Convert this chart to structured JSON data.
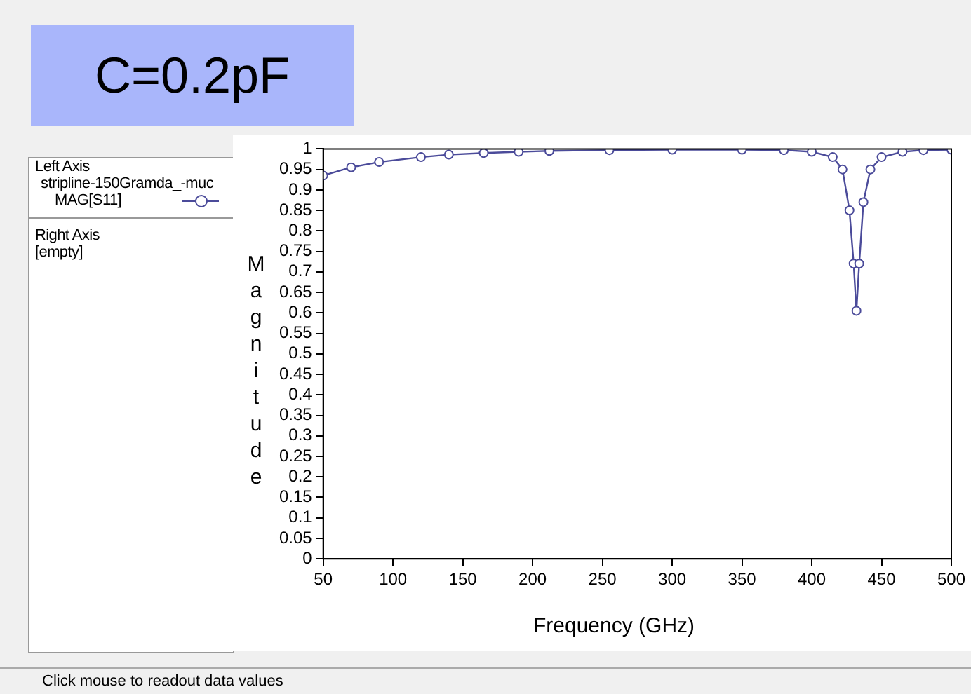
{
  "chart_data": {
    "type": "line",
    "xlabel": "Frequency (GHz)",
    "ylabel": "Magnitude",
    "annotations": [
      "C=0.2pF",
      "Left Axis",
      "stripline-150Gramda_-muc",
      "Right Axis",
      "[empty]",
      "Click mouse to readout data values"
    ],
    "series": [
      {
        "name": "MAG[S11]",
        "color": "#4b4b9a",
        "x": [
          50,
          70,
          90,
          120,
          140,
          165,
          190,
          212,
          255,
          300,
          350,
          380,
          400,
          415,
          422,
          427,
          430,
          432,
          434,
          437,
          442,
          450,
          465,
          480,
          500
        ],
        "values": [
          0.935,
          0.955,
          0.968,
          0.98,
          0.986,
          0.99,
          0.993,
          0.995,
          0.997,
          0.998,
          0.998,
          0.997,
          0.993,
          0.98,
          0.95,
          0.85,
          0.72,
          0.605,
          0.72,
          0.87,
          0.95,
          0.98,
          0.993,
          0.997,
          0.998
        ]
      }
    ],
    "xlim": [
      50,
      500
    ],
    "xticks": [
      50,
      100,
      150,
      200,
      250,
      300,
      350,
      400,
      450,
      500
    ],
    "ylim": [
      0,
      1
    ],
    "yticks": [
      0,
      0.05,
      0.1,
      0.15,
      0.2,
      0.25,
      0.3,
      0.35,
      0.4,
      0.45,
      0.5,
      0.55,
      0.6,
      0.65,
      0.7,
      0.75,
      0.8,
      0.85,
      0.9,
      0.95,
      1
    ],
    "grid": false,
    "legend": "left",
    "marker": "circle",
    "line_style": "solid"
  }
}
